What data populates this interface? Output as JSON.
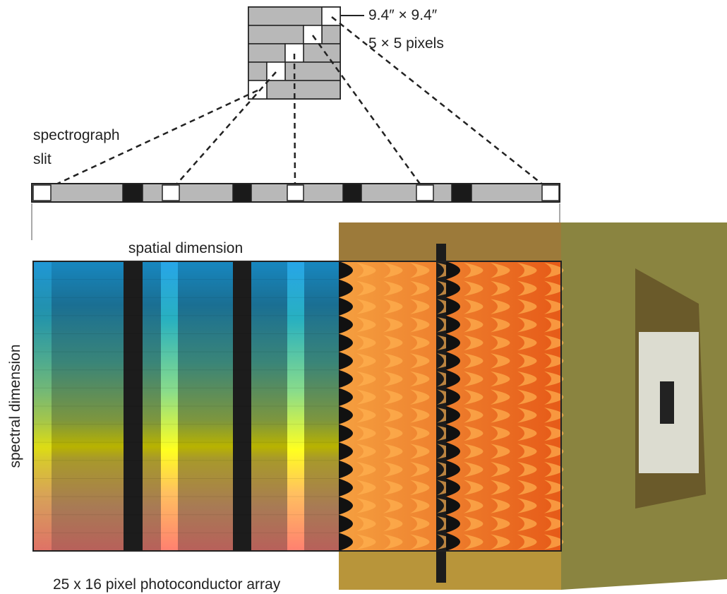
{
  "labels": {
    "pixel_size": "9.4″ × 9.4″",
    "pixel_grid": "5 × 5 pixels",
    "slit": [
      "spectrograph",
      "slit"
    ],
    "spatial": "spatial dimension",
    "spectral": "spectral dimension",
    "array": "25 x 16 pixel photoconductor array"
  }
}
